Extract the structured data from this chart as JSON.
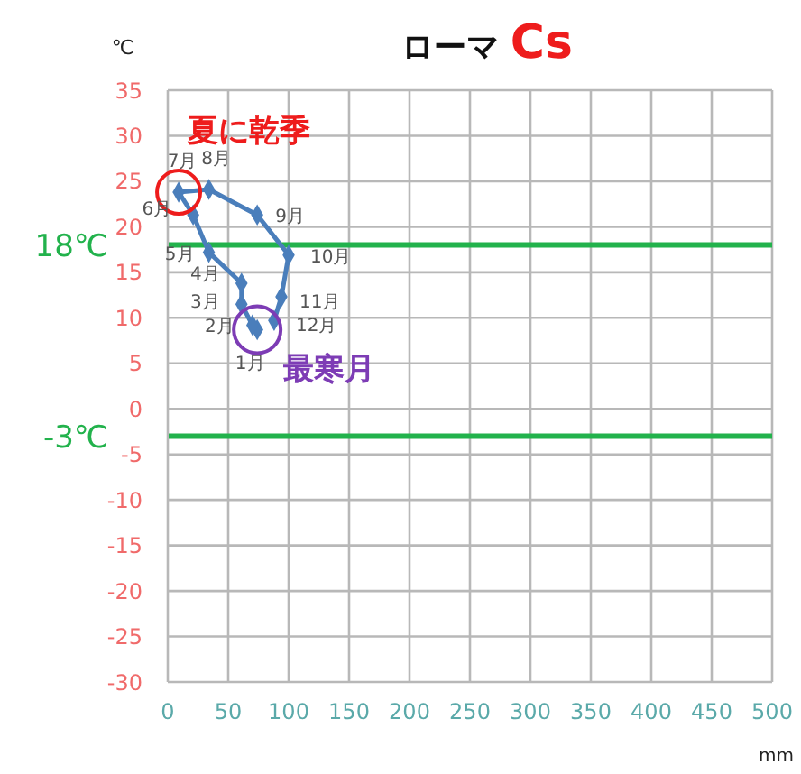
{
  "chart_data": {
    "type": "line",
    "title": "ローマ Cs",
    "xlabel": "mm",
    "ylabel": "℃",
    "x": [
      74,
      70,
      61,
      61,
      34,
      21,
      9,
      34,
      74,
      100,
      94,
      88
    ],
    "series": [
      {
        "color": "#4a7ebb",
        "values": [
          8.7,
          9.2,
          11.5,
          13.8,
          17.2,
          21.3,
          23.8,
          24.1,
          21.3,
          16.9,
          12.3,
          9.7
        ]
      }
    ],
    "xlim": [
      0,
      500
    ],
    "xticks": [
      0,
      50,
      100,
      150,
      200,
      250,
      300,
      350,
      400,
      450,
      500
    ],
    "ylim": [
      -30,
      35
    ],
    "yticks": [
      -30,
      -25,
      -20,
      -15,
      -10,
      -5,
      0,
      5,
      10,
      15,
      20,
      25,
      30,
      35
    ],
    "grid": true,
    "marker": "diamond",
    "line_style": "solid",
    "ref_lines": [
      {
        "axis": "y",
        "value": 18,
        "label": "18℃",
        "color": "#22b24c"
      },
      {
        "axis": "y",
        "value": -3,
        "label": "-3℃",
        "color": "#22b24c"
      }
    ],
    "annotations": [
      {
        "text": "1月",
        "x": 74,
        "y": 8.7
      },
      {
        "text": "2月",
        "x": 70,
        "y": 9.2
      },
      {
        "text": "3月",
        "x": 61,
        "y": 11.5
      },
      {
        "text": "4月",
        "x": 61,
        "y": 13.8
      },
      {
        "text": "5月",
        "x": 34,
        "y": 17.2
      },
      {
        "text": "6月",
        "x": 21,
        "y": 21.3
      },
      {
        "text": "7月",
        "x": 9,
        "y": 23.8
      },
      {
        "text": "8月",
        "x": 34,
        "y": 24.1
      },
      {
        "text": "9月",
        "x": 74,
        "y": 21.3
      },
      {
        "text": "10月",
        "x": 100,
        "y": 16.9
      },
      {
        "text": "11月",
        "x": 94,
        "y": 12.3
      },
      {
        "text": "12月",
        "x": 88,
        "y": 9.7
      },
      "夏に乾季",
      "最寒月"
    ]
  }
}
